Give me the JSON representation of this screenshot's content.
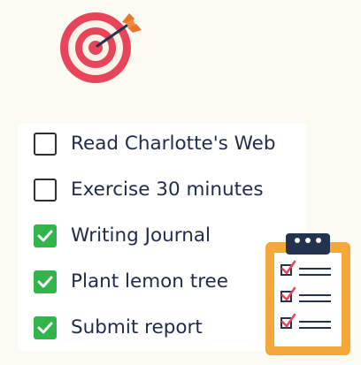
{
  "icons": {
    "target": "target-with-arrow-icon",
    "clipboard": "clipboard-checklist-icon"
  },
  "colors": {
    "background": "#fbfaf3",
    "text": "#1f2b4d",
    "check_green": "#31b44a",
    "target_red": "#e8455a",
    "arrow_orange": "#e8772e",
    "clipboard_orange": "#f4a83a",
    "clipboard_navy": "#22324f"
  },
  "todo": {
    "items": [
      {
        "label": "Read Charlotte's Web",
        "checked": false
      },
      {
        "label": "Exercise 30 minutes",
        "checked": false
      },
      {
        "label": "Writing Journal",
        "checked": true
      },
      {
        "label": "Plant lemon tree",
        "checked": true
      },
      {
        "label": "Submit report",
        "checked": true
      }
    ]
  }
}
